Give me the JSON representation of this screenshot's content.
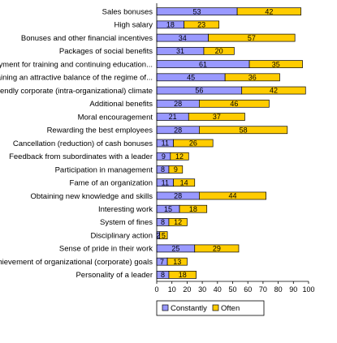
{
  "chart_data": {
    "type": "bar",
    "orientation": "horizontal",
    "stacked": true,
    "categories": [
      "Sales bonuses",
      "High salary",
      "Bonuses and other financial incentives",
      "Packages of social benefits",
      "Payment for training and continuing education...",
      "Maintaining an attractive balance of the regime of...",
      "Friendly corporate (intra-organizational) climate",
      "Additional benefits",
      "Moral encouragement",
      "Rewarding the best employees",
      "Cancellation (reduction) of cash bonuses",
      "Feedback from subordinates with a leader",
      "Participation in management",
      "Fame of an organization",
      "Obtaining new knowledge and skills",
      "Interesting work",
      "System of fines",
      "Disciplinary action",
      "Sense of pride in their work",
      "Achievement of organizational (corporate) goals",
      "Personality of a leader"
    ],
    "series": [
      {
        "name": "Constantly",
        "color": "#9999ff",
        "values": [
          53,
          18,
          34,
          31,
          61,
          45,
          56,
          28,
          21,
          28,
          11,
          9,
          8,
          11,
          28,
          15,
          8,
          2,
          25,
          7,
          8
        ]
      },
      {
        "name": "Often",
        "color": "#ffcc00",
        "values": [
          42,
          23,
          57,
          20,
          35,
          36,
          42,
          46,
          37,
          58,
          26,
          12,
          9,
          14,
          44,
          18,
          12,
          5,
          29,
          13,
          18
        ]
      }
    ],
    "data_labels": {
      "Constantly": [
        "53",
        "18",
        "34",
        "31",
        "61",
        "45",
        "56",
        "28",
        "21",
        "28",
        "11",
        "9",
        "8",
        "11",
        "28",
        "15",
        "8",
        "2",
        "25",
        "7",
        "8"
      ],
      "Often": [
        "42",
        "23",
        "57",
        "20",
        "35",
        "36",
        "42",
        "46",
        "37",
        "58",
        "26",
        "12",
        "9",
        "14",
        "44",
        "18",
        "12",
        "5",
        "29",
        "13",
        "18"
      ]
    },
    "xlim": [
      0,
      100
    ],
    "xticks": [
      "0",
      "10",
      "20",
      "30",
      "40",
      "50",
      "60",
      "70",
      "80",
      "90",
      "100"
    ],
    "grid": false,
    "legend_position": "bottom"
  }
}
